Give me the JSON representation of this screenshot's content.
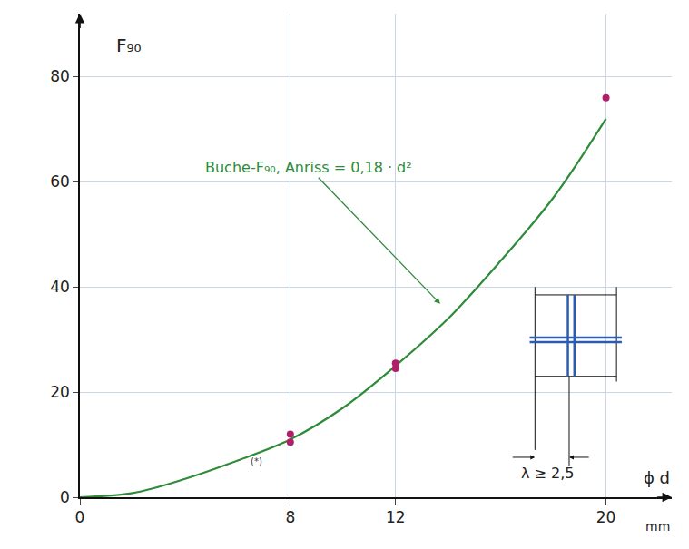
{
  "chart_data": {
    "type": "line",
    "ylabel": "F₉₀",
    "xlabel": "ϕ d",
    "x_unit": "mm",
    "curve_label": "Buche-F₉₀, Anriss = 0,18 · d²",
    "annotations": [
      "(*)",
      "λ ≥ 2,5"
    ],
    "series": [
      {
        "type": "line",
        "color": "#2e8b3a",
        "line_style": "solid",
        "x": [
          0,
          2,
          4,
          6,
          8,
          10,
          12,
          14,
          16,
          18,
          20
        ],
        "values": [
          0,
          0.8,
          3.5,
          7,
          11,
          17,
          25,
          34,
          45,
          57,
          72
        ]
      },
      {
        "type": "scatter",
        "color": "#b0206a",
        "marker": "circle",
        "x": [
          8,
          8,
          12,
          12,
          20
        ],
        "values": [
          12,
          10.5,
          25.5,
          24.5,
          76
        ]
      }
    ],
    "xlim": [
      0,
      22.5
    ],
    "ylim": [
      0,
      92
    ],
    "xticks": [
      0,
      8,
      12,
      20
    ],
    "yticks": [
      0,
      20,
      40,
      60,
      80
    ],
    "grid": true
  }
}
